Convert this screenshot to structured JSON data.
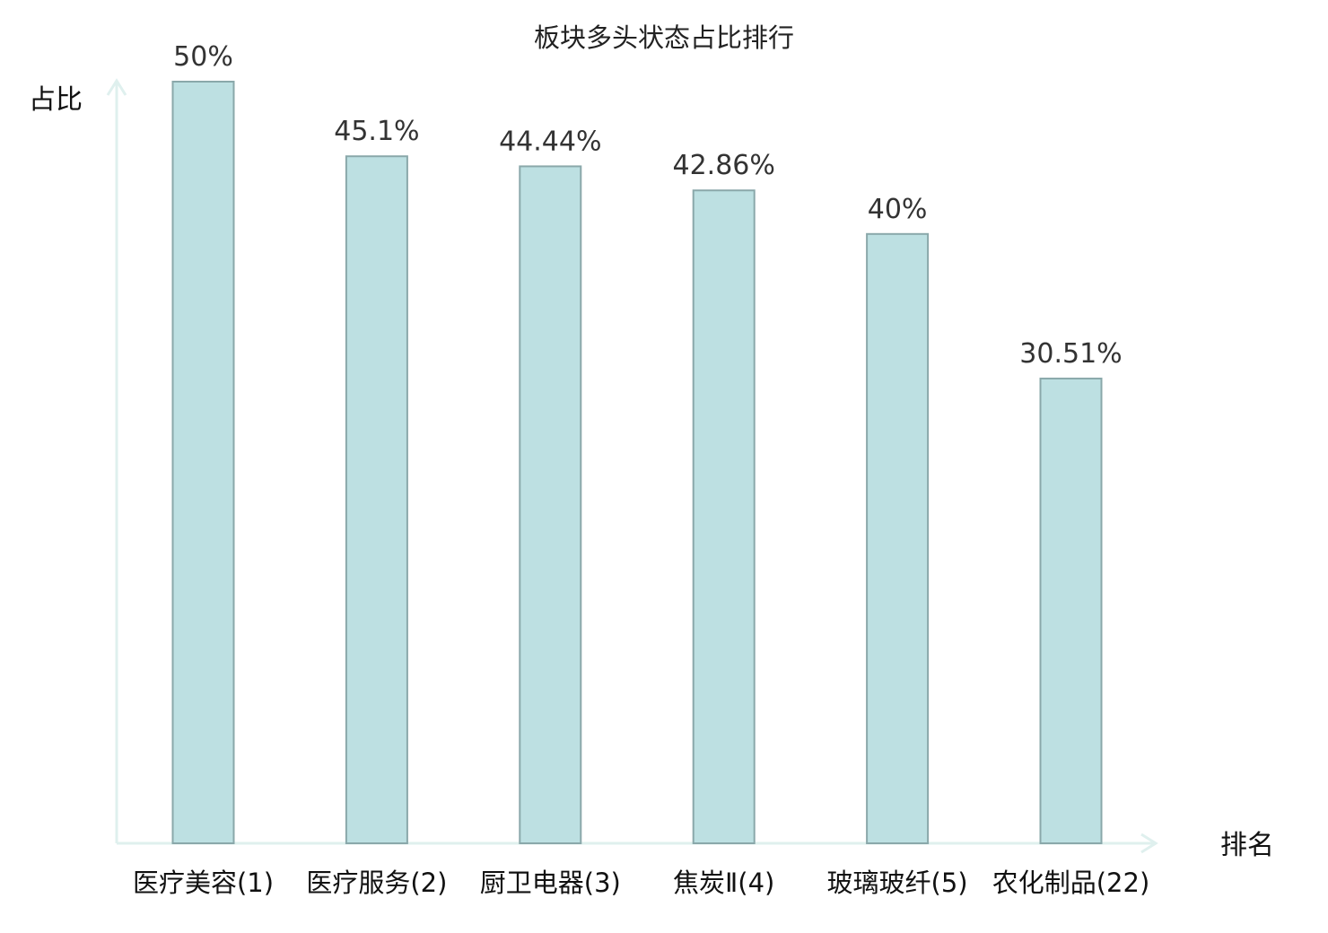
{
  "chart_data": {
    "type": "bar",
    "title": "板块多头状态占比排行",
    "xlabel": "排名",
    "ylabel": "占比",
    "categories": [
      "医疗美容(1)",
      "医疗服务(2)",
      "厨卫电器(3)",
      "焦炭Ⅱ(4)",
      "玻璃玻纤(5)",
      "农化制品(22)"
    ],
    "values": [
      50,
      45.1,
      44.44,
      42.86,
      40,
      30.51
    ],
    "value_labels": [
      "50%",
      "45.1%",
      "44.44%",
      "42.86%",
      "40%",
      "30.51%"
    ],
    "highlight_index": 5,
    "ylim": [
      0,
      50
    ],
    "grid": false,
    "colors": {
      "bar_fill": "#bde0e2",
      "bar_stroke": "#8aa8aa",
      "axis": "#dff0ee",
      "highlight_text": "#e0201b",
      "text": "#111111"
    }
  }
}
